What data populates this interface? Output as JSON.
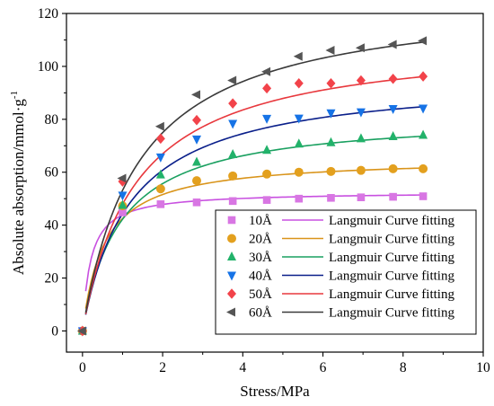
{
  "chart_data": {
    "type": "scatter",
    "xlabel": "Stress/MPa",
    "ylabel": "Absolute absorption/mmol·g",
    "ylabel_superscript": "-1",
    "xlim": [
      -0.4,
      10
    ],
    "ylim": [
      -8,
      120
    ],
    "xticks": [
      0,
      2,
      4,
      6,
      8,
      10
    ],
    "yticks": [
      0,
      20,
      40,
      60,
      80,
      100,
      120
    ],
    "legend_position": "bottom-right",
    "grid": false,
    "fit_label": "Langmuir Curve fitting",
    "fit_x_start": 0.08,
    "x": [
      0,
      1,
      1.95,
      2.85,
      3.75,
      4.6,
      5.4,
      6.2,
      6.95,
      7.75,
      8.5
    ],
    "series": [
      {
        "name": "10Å",
        "marker": "square",
        "marker_color": "#d876e3",
        "line_color": "#c850e0",
        "y": [
          0,
          44.8,
          47.9,
          48.6,
          49.1,
          49.5,
          50.0,
          50.3,
          50.5,
          50.7,
          50.9
        ],
        "fit": {
          "qmax": 52.6,
          "b": 5.0
        }
      },
      {
        "name": "20Å",
        "marker": "circle",
        "marker_color": "#e3a01e",
        "line_color": "#d9941a",
        "y": [
          0,
          47.3,
          53.7,
          56.8,
          58.6,
          59.3,
          60.0,
          60.3,
          60.7,
          61.3,
          61.3
        ],
        "fit": {
          "qmax": 65.5,
          "b": 1.85
        }
      },
      {
        "name": "30Å",
        "marker": "triangle-up",
        "marker_color": "#22b26a",
        "line_color": "#1aa060",
        "y": [
          0,
          47.5,
          59.0,
          63.8,
          66.7,
          68.3,
          70.7,
          71.2,
          72.7,
          73.5,
          74.0
        ],
        "fit": {
          "qmax": 81.7,
          "b": 1.07
        }
      },
      {
        "name": "40Å",
        "marker": "triangle-down",
        "marker_color": "#1673e6",
        "line_color": "#0a1f8a",
        "y": [
          0,
          51.3,
          65.7,
          72.5,
          78.4,
          80.3,
          80.4,
          82.4,
          82.8,
          84.0,
          84.2
        ],
        "fit": {
          "qmax": 96.5,
          "b": 0.85
        }
      },
      {
        "name": "50Å",
        "marker": "diamond",
        "marker_color": "#f2434a",
        "line_color": "#e8383d",
        "y": [
          0,
          56.5,
          72.7,
          79.7,
          86.0,
          91.7,
          93.6,
          93.6,
          94.7,
          95.3,
          96.2
        ],
        "fit": {
          "qmax": 111.0,
          "b": 0.76
        }
      },
      {
        "name": "60Å",
        "marker": "triangle-left",
        "marker_color": "#555555",
        "line_color": "#3a3a3a",
        "y": [
          0,
          57.7,
          77.3,
          89.3,
          94.7,
          98.0,
          103.8,
          106.1,
          107.0,
          108.3,
          109.7
        ],
        "fit": {
          "qmax": 127.0,
          "b": 0.72
        }
      }
    ]
  }
}
